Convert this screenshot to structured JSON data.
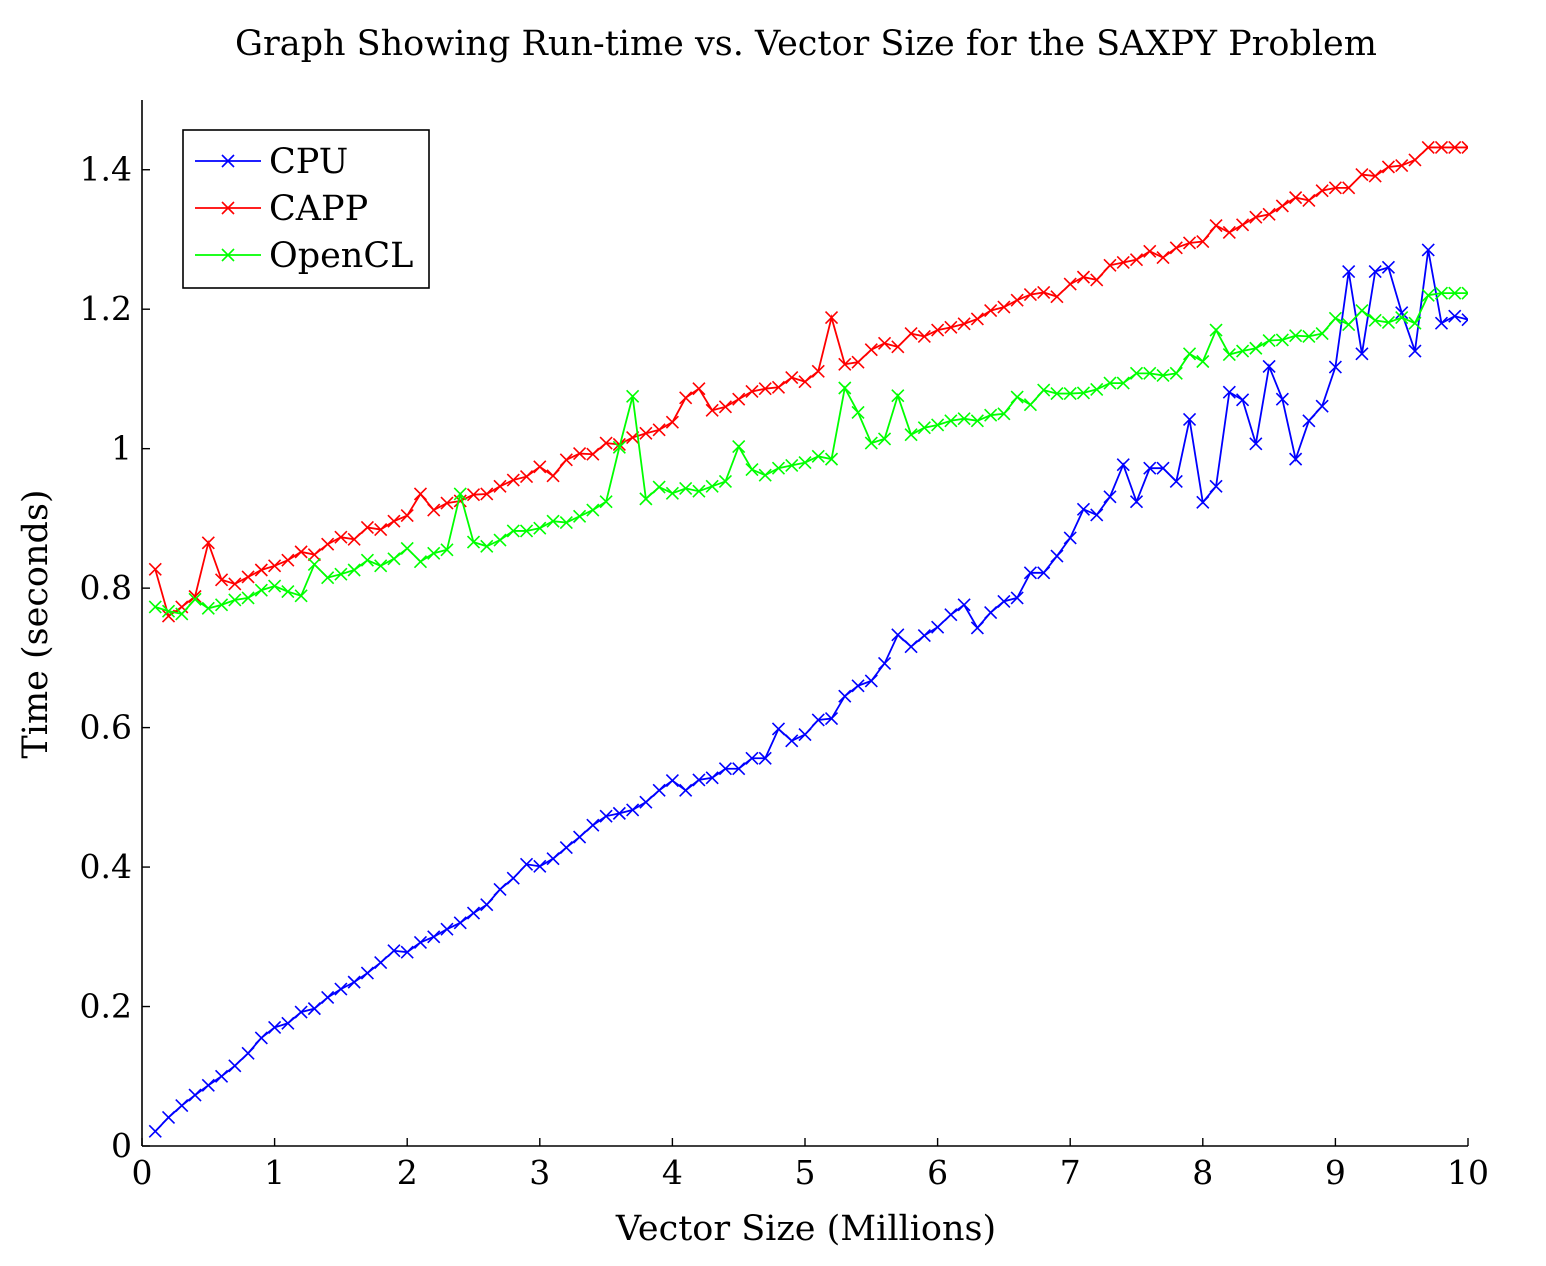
{
  "chart_data": {
    "type": "line",
    "title": "Graph Showing Run-time vs. Vector Size for the SAXPY Problem",
    "xlabel": "Vector Size (Millions)",
    "ylabel": "Time (seconds)",
    "xlim": [
      0,
      10
    ],
    "ylim": [
      0,
      1.5
    ],
    "x_ticks": [
      0,
      1,
      2,
      3,
      4,
      5,
      6,
      7,
      8,
      9,
      10
    ],
    "x_tick_labels": [
      "0",
      "1",
      "2",
      "3",
      "4",
      "5",
      "6",
      "7",
      "8",
      "9",
      "10"
    ],
    "y_ticks": [
      0,
      0.2,
      0.4,
      0.6,
      0.8,
      1.0,
      1.2,
      1.4
    ],
    "y_tick_labels": [
      "0",
      "0.2",
      "0.4",
      "0.6",
      "0.8",
      "1",
      "1.2",
      "1.4"
    ],
    "grid": false,
    "legend_position": "top-left",
    "marker": "x",
    "x": [
      0.1,
      0.2,
      0.3,
      0.4,
      0.5,
      0.6,
      0.7,
      0.8,
      0.9,
      1.0,
      1.1,
      1.2,
      1.3,
      1.4,
      1.5,
      1.6,
      1.7,
      1.8,
      1.9,
      2.0,
      2.1,
      2.2,
      2.3,
      2.4,
      2.5,
      2.6,
      2.7,
      2.8,
      2.9,
      3.0,
      3.1,
      3.2,
      3.3,
      3.4,
      3.5,
      3.6,
      3.7,
      3.8,
      3.9,
      4.0,
      4.1,
      4.2,
      4.3,
      4.4,
      4.5,
      4.6,
      4.7,
      4.8,
      4.9,
      5.0,
      5.1,
      5.2,
      5.3,
      5.4,
      5.5,
      5.6,
      5.7,
      5.8,
      5.9,
      6.0,
      6.1,
      6.2,
      6.3,
      6.4,
      6.5,
      6.6,
      6.7,
      6.8,
      6.9,
      7.0,
      7.1,
      7.2,
      7.3,
      7.4,
      7.5,
      7.6,
      7.7,
      7.8,
      7.9,
      8.0,
      8.1,
      8.2,
      8.3,
      8.4,
      8.5,
      8.6,
      8.7,
      8.8,
      8.9,
      9.0,
      9.1,
      9.2,
      9.3,
      9.4,
      9.5,
      9.6,
      9.7,
      9.8,
      9.9,
      10.0
    ],
    "series": [
      {
        "name": "CPU",
        "color": "#0000ff",
        "values": [
          0.021,
          0.041,
          0.058,
          0.073,
          0.087,
          0.1,
          0.115,
          0.133,
          0.155,
          0.17,
          0.176,
          0.192,
          0.197,
          0.213,
          0.225,
          0.235,
          0.248,
          0.263,
          0.28,
          0.278,
          0.292,
          0.3,
          0.311,
          0.32,
          0.334,
          0.346,
          0.368,
          0.384,
          0.404,
          0.401,
          0.412,
          0.428,
          0.443,
          0.46,
          0.473,
          0.477,
          0.482,
          0.493,
          0.51,
          0.524,
          0.51,
          0.525,
          0.528,
          0.541,
          0.541,
          0.556,
          0.556,
          0.598,
          0.581,
          0.59,
          0.611,
          0.613,
          0.645,
          0.66,
          0.667,
          0.692,
          0.733,
          0.716,
          0.732,
          0.744,
          0.762,
          0.776,
          0.743,
          0.765,
          0.781,
          0.786,
          0.822,
          0.822,
          0.846,
          0.872,
          0.913,
          0.905,
          0.931,
          0.977,
          0.924,
          0.972,
          0.972,
          0.953,
          1.042,
          0.923,
          0.946,
          1.081,
          1.07,
          1.007,
          1.118,
          1.071,
          0.985,
          1.04,
          1.061,
          1.117,
          1.254,
          1.136,
          1.254,
          1.26,
          1.195,
          1.14,
          1.285,
          1.18,
          1.19,
          1.185
        ],
        "values_note": ""
      },
      {
        "name": "CAPP",
        "color": "#ff0000",
        "values": [
          0.827,
          0.76,
          0.773,
          0.788,
          0.865,
          0.812,
          0.806,
          0.816,
          0.826,
          0.832,
          0.84,
          0.852,
          0.848,
          0.863,
          0.873,
          0.87,
          0.887,
          0.884,
          0.896,
          0.904,
          0.935,
          0.912,
          0.922,
          0.925,
          0.934,
          0.935,
          0.946,
          0.955,
          0.96,
          0.974,
          0.961,
          0.984,
          0.993,
          0.992,
          1.008,
          1.006,
          1.016,
          1.022,
          1.027,
          1.038,
          1.073,
          1.086,
          1.055,
          1.06,
          1.071,
          1.082,
          1.086,
          1.088,
          1.102,
          1.096,
          1.111,
          1.188,
          1.121,
          1.124,
          1.142,
          1.151,
          1.146,
          1.165,
          1.161,
          1.17,
          1.174,
          1.179,
          1.186,
          1.198,
          1.203,
          1.213,
          1.221,
          1.224,
          1.218,
          1.236,
          1.246,
          1.242,
          1.263,
          1.267,
          1.271,
          1.283,
          1.274,
          1.288,
          1.295,
          1.297,
          1.32,
          1.31,
          1.321,
          1.332,
          1.336,
          1.348,
          1.36,
          1.356,
          1.37,
          1.374,
          1.374,
          1.393,
          1.391,
          1.404,
          1.406,
          1.414,
          1.432,
          1.432,
          1.432,
          1.432
        ]
      },
      {
        "name": "OpenCL",
        "color": "#00ff00",
        "values": [
          0.773,
          0.767,
          0.763,
          0.784,
          0.771,
          0.776,
          0.783,
          0.786,
          0.797,
          0.803,
          0.795,
          0.789,
          0.834,
          0.815,
          0.82,
          0.826,
          0.84,
          0.832,
          0.842,
          0.857,
          0.838,
          0.85,
          0.855,
          0.935,
          0.866,
          0.86,
          0.869,
          0.882,
          0.882,
          0.886,
          0.896,
          0.894,
          0.903,
          0.912,
          0.924,
          1.002,
          1.075,
          0.928,
          0.945,
          0.936,
          0.943,
          0.939,
          0.946,
          0.953,
          1.003,
          0.97,
          0.962,
          0.972,
          0.976,
          0.98,
          0.989,
          0.985,
          1.087,
          1.052,
          1.008,
          1.014,
          1.076,
          1.02,
          1.03,
          1.034,
          1.04,
          1.043,
          1.04,
          1.048,
          1.05,
          1.074,
          1.063,
          1.084,
          1.079,
          1.079,
          1.08,
          1.085,
          1.094,
          1.094,
          1.108,
          1.108,
          1.105,
          1.108,
          1.136,
          1.125,
          1.17,
          1.135,
          1.14,
          1.144,
          1.155,
          1.156,
          1.162,
          1.161,
          1.165,
          1.187,
          1.178,
          1.198,
          1.184,
          1.181,
          1.188,
          1.18,
          1.22,
          1.223,
          1.223,
          1.223
        ]
      }
    ]
  }
}
